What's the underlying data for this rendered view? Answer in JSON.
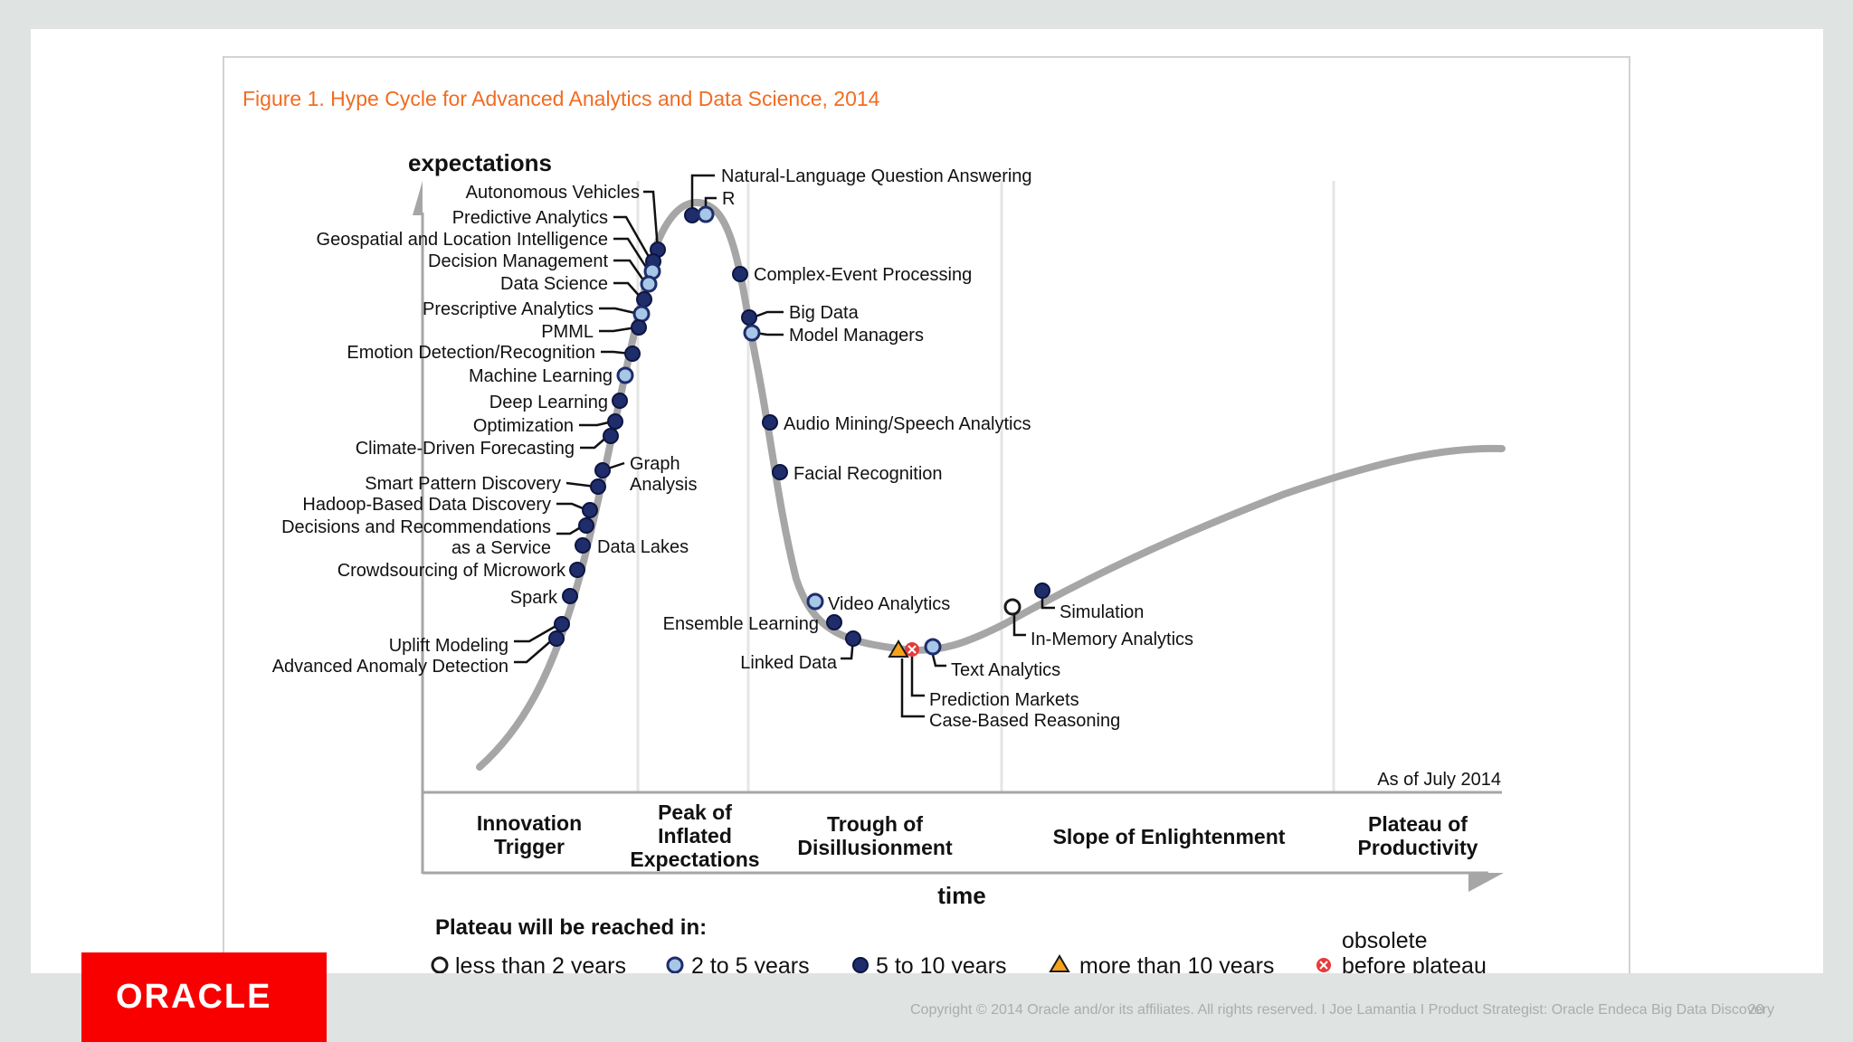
{
  "figure": {
    "title": "Figure 1. Hype Cycle for Advanced Analytics and Data Science, 2014",
    "y_axis_label": "expectations",
    "x_axis_label": "time",
    "as_of": "As of July 2014",
    "phases": [
      {
        "id": "innovation",
        "lines": [
          "Innovation",
          "Trigger"
        ]
      },
      {
        "id": "peak",
        "lines": [
          "Peak of",
          "Inflated",
          "Expectations"
        ]
      },
      {
        "id": "trough",
        "lines": [
          "Trough of",
          "Disillusionment"
        ]
      },
      {
        "id": "slope",
        "lines": [
          "Slope of Enlightenment"
        ]
      },
      {
        "id": "plateau",
        "lines": [
          "Plateau of",
          "Productivity"
        ]
      }
    ],
    "legend": {
      "title": "Plateau will be reached in:",
      "items": [
        {
          "type": "open",
          "label": "less than 2 years"
        },
        {
          "type": "light",
          "label": "2 to 5 years"
        },
        {
          "type": "dark",
          "label": "5 to 10 years"
        },
        {
          "type": "triangle",
          "label": "more than 10 years"
        },
        {
          "type": "obsolete",
          "label_lines": [
            "obsolete",
            "before plateau"
          ]
        }
      ]
    }
  },
  "chart_data": {
    "type": "hype_cycle",
    "legend_types": {
      "open": "less than 2 years",
      "light": "2 to 5 years",
      "dark": "5 to 10 years",
      "triangle": "more than 10 years",
      "obsolete": "obsolete before plateau"
    },
    "technologies": [
      {
        "lines": [
          "Natural-Language Question Answering"
        ],
        "type": "dark"
      },
      {
        "lines": [
          "R"
        ],
        "type": "light"
      },
      {
        "lines": [
          "Autonomous Vehicles"
        ],
        "type": "dark"
      },
      {
        "lines": [
          "Predictive Analytics"
        ],
        "type": "dark"
      },
      {
        "lines": [
          "Geospatial and Location Intelligence"
        ],
        "type": "light"
      },
      {
        "lines": [
          "Decision Management"
        ],
        "type": "light"
      },
      {
        "lines": [
          "Data Science"
        ],
        "type": "dark"
      },
      {
        "lines": [
          "Prescriptive Analytics"
        ],
        "type": "light"
      },
      {
        "lines": [
          "PMML"
        ],
        "type": "dark"
      },
      {
        "lines": [
          "Emotion Detection/Recognition"
        ],
        "type": "dark"
      },
      {
        "lines": [
          "Machine Learning"
        ],
        "type": "light"
      },
      {
        "lines": [
          "Deep Learning"
        ],
        "type": "dark"
      },
      {
        "lines": [
          "Optimization"
        ],
        "type": "dark"
      },
      {
        "lines": [
          "Climate-Driven Forecasting"
        ],
        "type": "dark"
      },
      {
        "lines": [
          "Graph",
          "Analysis"
        ],
        "type": "dark"
      },
      {
        "lines": [
          "Smart Pattern Discovery"
        ],
        "type": "dark"
      },
      {
        "lines": [
          "Hadoop-Based Data Discovery"
        ],
        "type": "dark"
      },
      {
        "lines": [
          "Decisions and Recommendations",
          "as a Service"
        ],
        "type": "dark"
      },
      {
        "lines": [
          "Data Lakes"
        ],
        "type": "dark"
      },
      {
        "lines": [
          "Crowdsourcing of  Microwork"
        ],
        "type": "dark"
      },
      {
        "lines": [
          "Spark"
        ],
        "type": "dark"
      },
      {
        "lines": [
          "Uplift Modeling"
        ],
        "type": "dark"
      },
      {
        "lines": [
          "Advanced Anomaly Detection"
        ],
        "type": "dark"
      },
      {
        "lines": [
          "Complex-Event Processing"
        ],
        "type": "dark"
      },
      {
        "lines": [
          "Big Data"
        ],
        "type": "dark"
      },
      {
        "lines": [
          "Model Managers"
        ],
        "type": "light"
      },
      {
        "lines": [
          "Audio Mining/Speech Analytics"
        ],
        "type": "dark"
      },
      {
        "lines": [
          "Facial Recognition"
        ],
        "type": "dark"
      },
      {
        "lines": [
          "Video Analytics"
        ],
        "type": "light"
      },
      {
        "lines": [
          "Ensemble Learning"
        ],
        "type": "dark"
      },
      {
        "lines": [
          "Linked Data"
        ],
        "type": "dark"
      },
      {
        "lines": [
          "Prediction Markets"
        ],
        "type": "obsolete"
      },
      {
        "lines": [
          "Case-Based Reasoning"
        ],
        "type": "triangle"
      },
      {
        "lines": [
          "Text Analytics"
        ],
        "type": "light"
      },
      {
        "lines": [
          "Simulation"
        ],
        "type": "dark"
      },
      {
        "lines": [
          "In-Memory Analytics"
        ],
        "type": "open"
      }
    ]
  },
  "footer": {
    "logo_text": "ORACLE",
    "copyright": "Copyright © 2014 Oracle and/or its affiliates. All rights reserved.  I Joe Lamantia I Product Strategist: Oracle Endeca Big Data Discovery",
    "page_number": "20"
  },
  "colors": {
    "title": "#f26b21",
    "dark_marker": "#1f2d6b",
    "light_marker": "#a7c7e7",
    "curve": "#a6a6a6",
    "obsolete": "#e83a3a",
    "triangle": "#f7a21b",
    "brand_red": "#f80000"
  }
}
